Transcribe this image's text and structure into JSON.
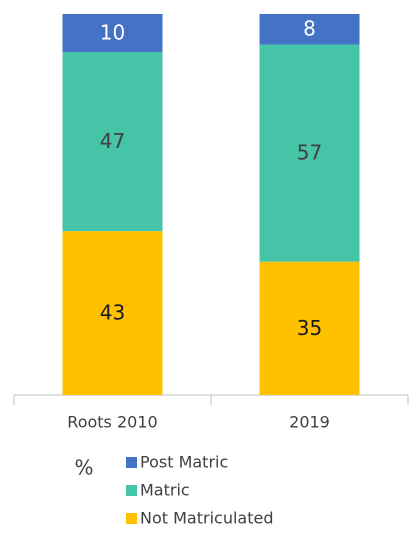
{
  "chart_data": {
    "type": "stacked_bar",
    "categories": [
      "Roots 2010",
      "2019"
    ],
    "series": [
      {
        "name": "Not Matriculated",
        "color": "#ffc000",
        "label_color": "#1a1a1a",
        "values": [
          43,
          35
        ]
      },
      {
        "name": "Matric",
        "color": "#45c4a8",
        "label_color": "#404040",
        "values": [
          47,
          57
        ]
      },
      {
        "name": "Post Matric",
        "color": "#4472c4",
        "label_color": "#ffffff",
        "values": [
          10,
          8
        ]
      }
    ],
    "ylim": [
      0,
      100
    ],
    "ylabel": "%",
    "legend": "bottom"
  }
}
